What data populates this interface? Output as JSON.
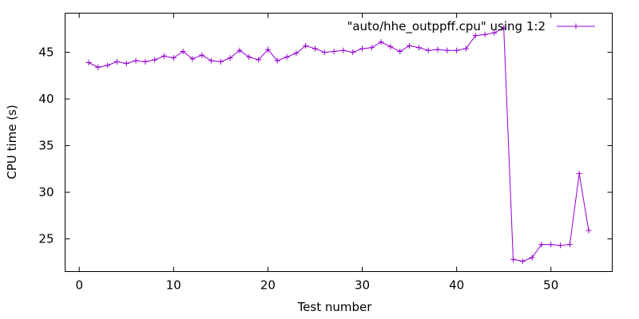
{
  "chart_data": {
    "type": "line",
    "title": "",
    "xlabel": "Test number",
    "ylabel": "CPU time (s)",
    "xlim": [
      -1.5,
      56.5
    ],
    "ylim": [
      21.5,
      49.2
    ],
    "xticks": [
      0,
      10,
      20,
      30,
      40,
      50
    ],
    "yticks": [
      25,
      30,
      35,
      40,
      45
    ],
    "grid": false,
    "legend_position": "top-right",
    "series": [
      {
        "name": "\"auto/hhe_outppff.cpu\" using 1:2",
        "color": "#9400d3",
        "marker": "plus",
        "x": [
          1,
          2,
          3,
          4,
          5,
          6,
          7,
          8,
          9,
          10,
          11,
          12,
          13,
          14,
          15,
          16,
          17,
          18,
          19,
          20,
          21,
          22,
          23,
          24,
          25,
          26,
          27,
          28,
          29,
          30,
          31,
          32,
          33,
          34,
          35,
          36,
          37,
          38,
          39,
          40,
          41,
          42,
          43,
          44,
          45,
          46,
          47,
          48,
          49,
          50,
          51,
          52,
          53,
          54
        ],
        "y": [
          43.9,
          43.4,
          43.6,
          44.0,
          43.8,
          44.1,
          44.0,
          44.2,
          44.6,
          44.4,
          45.1,
          44.3,
          44.7,
          44.1,
          44.0,
          44.4,
          45.2,
          44.5,
          44.2,
          45.3,
          44.1,
          44.5,
          44.9,
          45.7,
          45.4,
          45.0,
          45.1,
          45.2,
          45.0,
          45.4,
          45.5,
          46.1,
          45.6,
          45.1,
          45.7,
          45.5,
          45.2,
          45.3,
          45.2,
          45.2,
          45.4,
          46.8,
          46.9,
          47.1,
          47.6,
          22.8,
          22.6,
          23.0,
          24.4,
          24.4,
          24.3,
          24.4,
          32.0,
          25.9
        ]
      }
    ]
  }
}
